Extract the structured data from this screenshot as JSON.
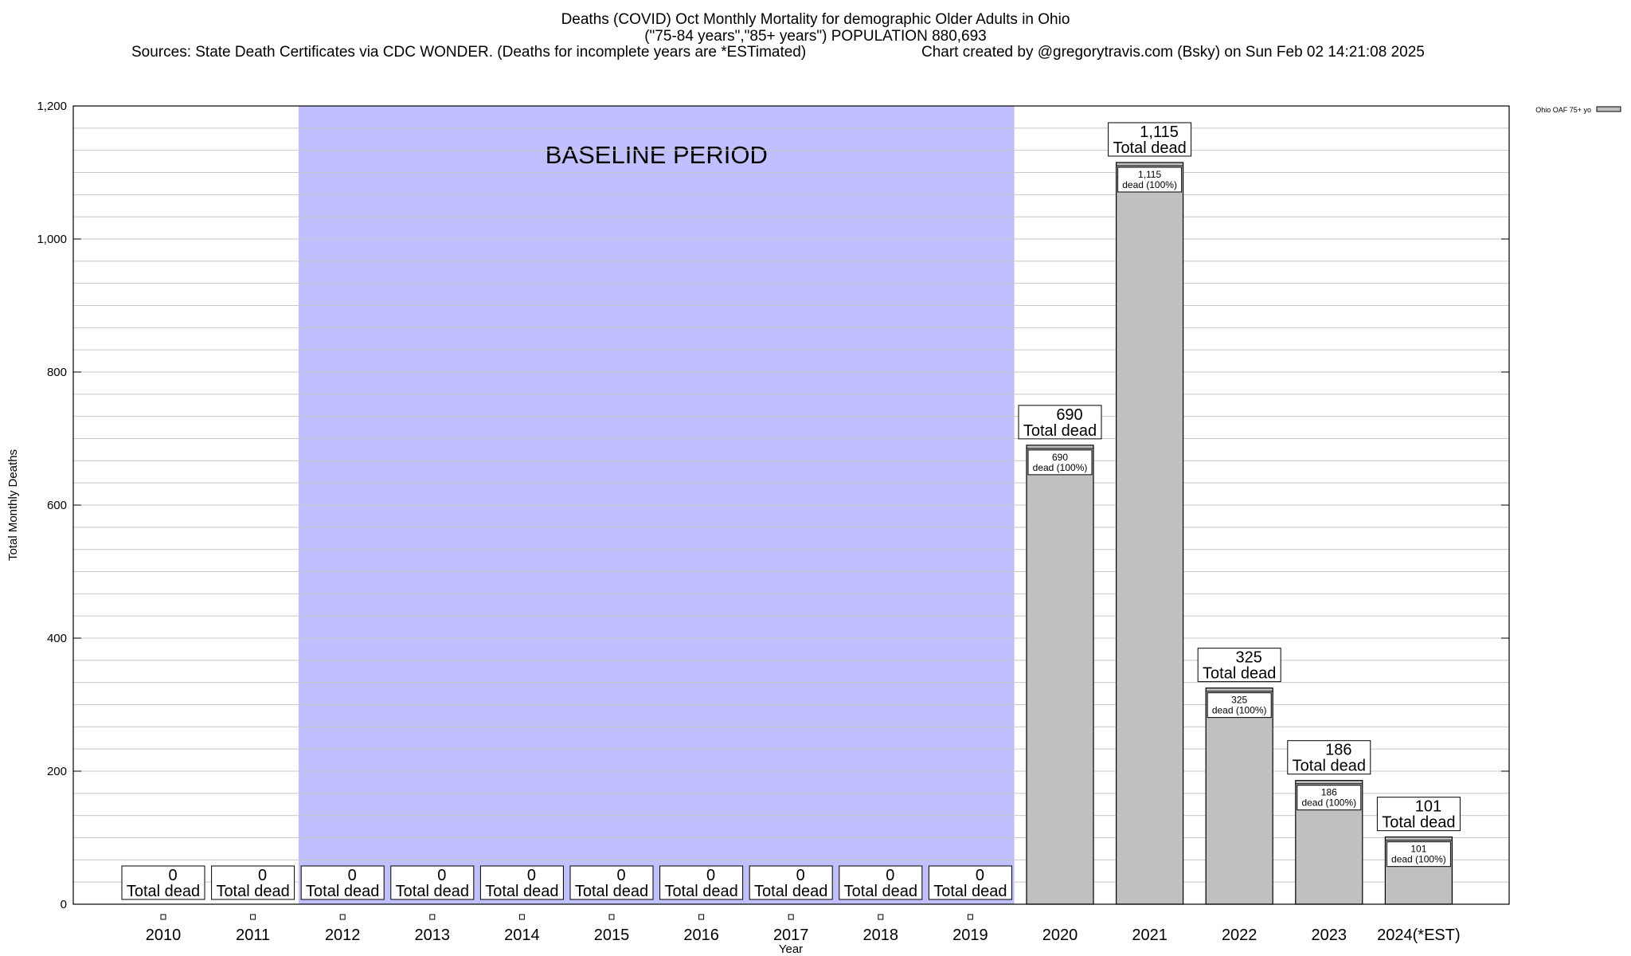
{
  "header": {
    "title": "Deaths (COVID) Oct Monthly Mortality for demographic Older Adults in Ohio",
    "subtitle": "(\"75-84 years\",\"85+ years\") POPULATION 880,693",
    "sources": "Sources: State Death Certificates via CDC WONDER. (Deaths for incomplete years are *ESTimated)",
    "credit": "Chart created by @gregorytravis.com (Bsky) on Sun Feb 02 14:21:08 2025"
  },
  "chart_data": {
    "type": "bar",
    "xlabel": "Year",
    "ylabel": "Total Monthly Deaths",
    "ylim": [
      0,
      1200
    ],
    "y_ticks": [
      0,
      200,
      400,
      600,
      800,
      1000,
      1200
    ],
    "y_tick_labels": [
      "0",
      "200",
      "400",
      "600",
      "800",
      "1,000",
      "1,200"
    ],
    "categories": [
      "2010",
      "2011",
      "2012",
      "2013",
      "2014",
      "2015",
      "2016",
      "2017",
      "2018",
      "2019",
      "2020",
      "2021",
      "2022",
      "2023",
      "2024(*EST)"
    ],
    "series": [
      {
        "name": "Ohio OAF 75+ yo",
        "color": "#c0c0c0",
        "values": [
          0,
          0,
          0,
          0,
          0,
          0,
          0,
          0,
          0,
          0,
          690,
          1115,
          325,
          186,
          101
        ],
        "value_labels": [
          "0",
          "0",
          "0",
          "0",
          "0",
          "0",
          "0",
          "0",
          "0",
          "0",
          "690",
          "1,115",
          "325",
          "186",
          "101"
        ]
      }
    ],
    "total_label": "Total dead",
    "inner_label_suffix": "dead (100%)",
    "baseline": {
      "label": "BASELINE PERIOD",
      "from": "2012",
      "to": "2019",
      "color": "#c0c0ff"
    },
    "grid": true,
    "legend": "top-right"
  }
}
